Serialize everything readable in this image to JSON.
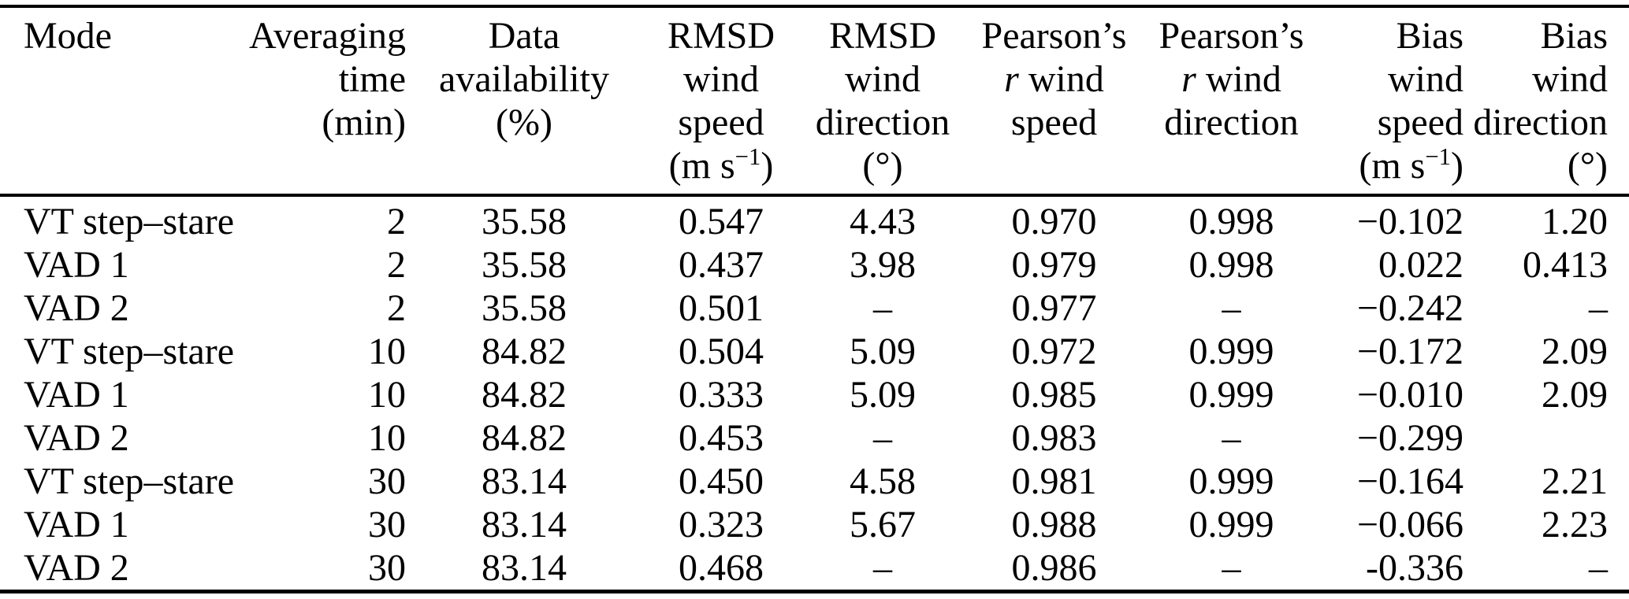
{
  "table": {
    "header": [
      {
        "name": "mode",
        "lines": [
          [
            {
              "t": "Mode"
            }
          ]
        ]
      },
      {
        "name": "averaging-time",
        "lines": [
          [
            {
              "t": "Averaging"
            }
          ],
          [
            {
              "t": "time"
            }
          ],
          [
            {
              "t": "(min)"
            }
          ]
        ]
      },
      {
        "name": "data-availability",
        "lines": [
          [
            {
              "t": "Data"
            }
          ],
          [
            {
              "t": "availability"
            }
          ],
          [
            {
              "t": "(%)"
            }
          ]
        ]
      },
      {
        "name": "rmsd-wind-speed",
        "lines": [
          [
            {
              "t": "RMSD"
            }
          ],
          [
            {
              "t": "wind"
            }
          ],
          [
            {
              "t": "speed"
            }
          ],
          [
            {
              "t": "(m s"
            },
            {
              "t": "−1",
              "sup": true
            },
            {
              "t": ")"
            }
          ]
        ]
      },
      {
        "name": "rmsd-wind-direction",
        "lines": [
          [
            {
              "t": "RMSD"
            }
          ],
          [
            {
              "t": "wind"
            }
          ],
          [
            {
              "t": "direction"
            }
          ],
          [
            {
              "t": "(°)"
            }
          ]
        ]
      },
      {
        "name": "pearsons-r-wind-speed",
        "lines": [
          [
            {
              "t": "Pearson’s"
            }
          ],
          [
            {
              "t": "r",
              "italic": true
            },
            {
              "t": " wind"
            }
          ],
          [
            {
              "t": "speed"
            }
          ]
        ]
      },
      {
        "name": "pearsons-r-wind-direction",
        "lines": [
          [
            {
              "t": "Pearson’s"
            }
          ],
          [
            {
              "t": "r",
              "italic": true
            },
            {
              "t": " wind"
            }
          ],
          [
            {
              "t": "direction"
            }
          ]
        ]
      },
      {
        "name": "bias-wind-speed",
        "lines": [
          [
            {
              "t": "Bias"
            }
          ],
          [
            {
              "t": "wind"
            }
          ],
          [
            {
              "t": "speed"
            }
          ],
          [
            {
              "t": "(m s"
            },
            {
              "t": "−1",
              "sup": true
            },
            {
              "t": ")"
            }
          ]
        ]
      },
      {
        "name": "bias-wind-direction",
        "lines": [
          [
            {
              "t": "Bias"
            }
          ],
          [
            {
              "t": "wind"
            }
          ],
          [
            {
              "t": "direction"
            }
          ],
          [
            {
              "t": "(°)"
            }
          ]
        ]
      }
    ],
    "rows": [
      [
        "VT step–stare",
        "2",
        "35.58",
        "0.547",
        "4.43",
        "0.970",
        "0.998",
        "−0.102",
        "1.20"
      ],
      [
        "VAD 1",
        "2",
        "35.58",
        "0.437",
        "3.98",
        "0.979",
        "0.998",
        "0.022",
        "0.413"
      ],
      [
        "VAD 2",
        "2",
        "35.58",
        "0.501",
        "–",
        "0.977",
        "–",
        "−0.242",
        "–"
      ],
      [
        "VT step–stare",
        "10",
        "84.82",
        "0.504",
        "5.09",
        "0.972",
        "0.999",
        "−0.172",
        "2.09"
      ],
      [
        "VAD 1",
        "10",
        "84.82",
        "0.333",
        "5.09",
        "0.985",
        "0.999",
        "−0.010",
        "2.09"
      ],
      [
        "VAD 2",
        "10",
        "84.82",
        "0.453",
        "–",
        "0.983",
        "–",
        "−0.299",
        ""
      ],
      [
        "VT step–stare",
        "30",
        "83.14",
        "0.450",
        "4.58",
        "0.981",
        "0.999",
        "−0.164",
        "2.21"
      ],
      [
        "VAD 1",
        "30",
        "83.14",
        "0.323",
        "5.67",
        "0.988",
        "0.999",
        "−0.066",
        "2.23"
      ],
      [
        "VAD 2",
        "30",
        "83.14",
        "0.468",
        "–",
        "0.986",
        "–",
        "-0.336",
        "–"
      ]
    ]
  }
}
